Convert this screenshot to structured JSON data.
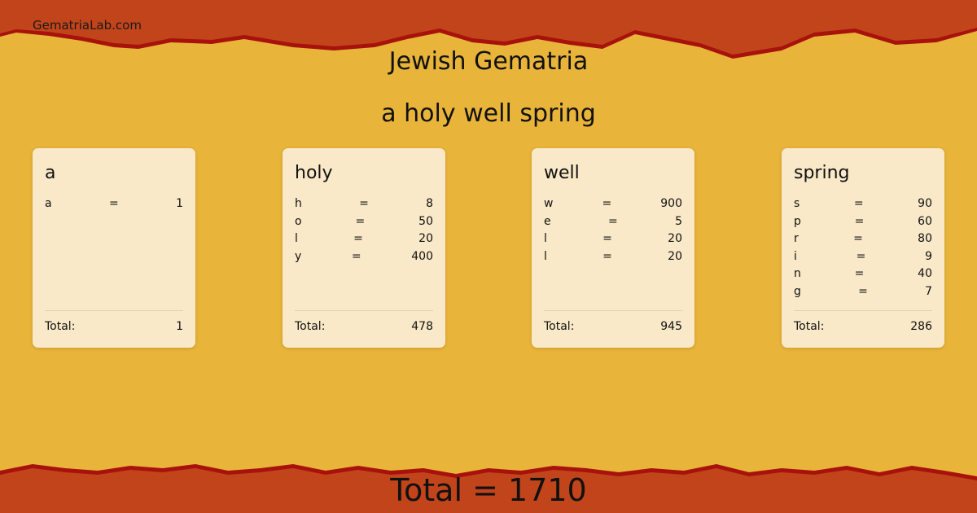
{
  "site": "GematriaLab.com",
  "title": "Jewish Gematria",
  "phrase": "a holy well spring",
  "colors": {
    "band": "#c2441a",
    "edge": "#a8120c",
    "paper": "#e9b43a",
    "card": "#f9e9c8"
  },
  "total_label": "Total:",
  "cards": [
    {
      "word": "a",
      "letters": [
        [
          "a",
          "=",
          "1"
        ]
      ],
      "total": "1"
    },
    {
      "word": "holy",
      "letters": [
        [
          "h",
          "=",
          "8"
        ],
        [
          "o",
          "=",
          "50"
        ],
        [
          "l",
          "=",
          "20"
        ],
        [
          "y",
          "=",
          "400"
        ]
      ],
      "total": "478"
    },
    {
      "word": "well",
      "letters": [
        [
          "w",
          "=",
          "900"
        ],
        [
          "e",
          "=",
          "5"
        ],
        [
          "l",
          "=",
          "20"
        ],
        [
          "l",
          "=",
          "20"
        ]
      ],
      "total": "945"
    },
    {
      "word": "spring",
      "letters": [
        [
          "s",
          "=",
          "90"
        ],
        [
          "p",
          "=",
          "60"
        ],
        [
          "r",
          "=",
          "80"
        ],
        [
          "i",
          "=",
          "9"
        ],
        [
          "n",
          "=",
          "40"
        ],
        [
          "g",
          "=",
          "7"
        ]
      ],
      "total": "286"
    }
  ],
  "grand_total": "Total = 1710"
}
